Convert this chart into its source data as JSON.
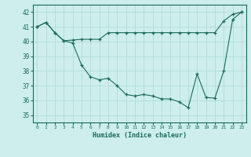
{
  "xlabel": "Humidex (Indice chaleur)",
  "xlim": [
    -0.5,
    23.5
  ],
  "ylim": [
    34.5,
    42.5
  ],
  "yticks": [
    35,
    36,
    37,
    38,
    39,
    40,
    41,
    42
  ],
  "xticks": [
    0,
    1,
    2,
    3,
    4,
    5,
    6,
    7,
    8,
    9,
    10,
    11,
    12,
    13,
    14,
    15,
    16,
    17,
    18,
    19,
    20,
    21,
    22,
    23
  ],
  "bg_color": "#cdeeed",
  "grid_color": "#b0ddd5",
  "line_color": "#1a6b5a",
  "line1_x": [
    0,
    1,
    2,
    3,
    4,
    5,
    6,
    7,
    8,
    9,
    10,
    11,
    12,
    13,
    14,
    15,
    16,
    17,
    18,
    19,
    20,
    21,
    22,
    23
  ],
  "line1_y": [
    41.0,
    41.3,
    40.6,
    40.05,
    40.1,
    40.15,
    40.15,
    40.15,
    40.6,
    40.6,
    40.6,
    40.6,
    40.6,
    40.6,
    40.6,
    40.6,
    40.6,
    40.6,
    40.6,
    40.6,
    40.6,
    41.4,
    41.85,
    42.0
  ],
  "line2_x": [
    0,
    1,
    2,
    3,
    4,
    5,
    6,
    7,
    8,
    9,
    10,
    11,
    12,
    13,
    14,
    15,
    16,
    17,
    18,
    19,
    20,
    21,
    22,
    23
  ],
  "line2_y": [
    41.0,
    41.3,
    40.6,
    40.05,
    39.9,
    38.4,
    37.6,
    37.4,
    37.5,
    37.0,
    36.4,
    36.3,
    36.4,
    36.3,
    36.1,
    36.1,
    35.9,
    35.5,
    37.8,
    36.2,
    36.15,
    38.0,
    41.5,
    42.0
  ]
}
